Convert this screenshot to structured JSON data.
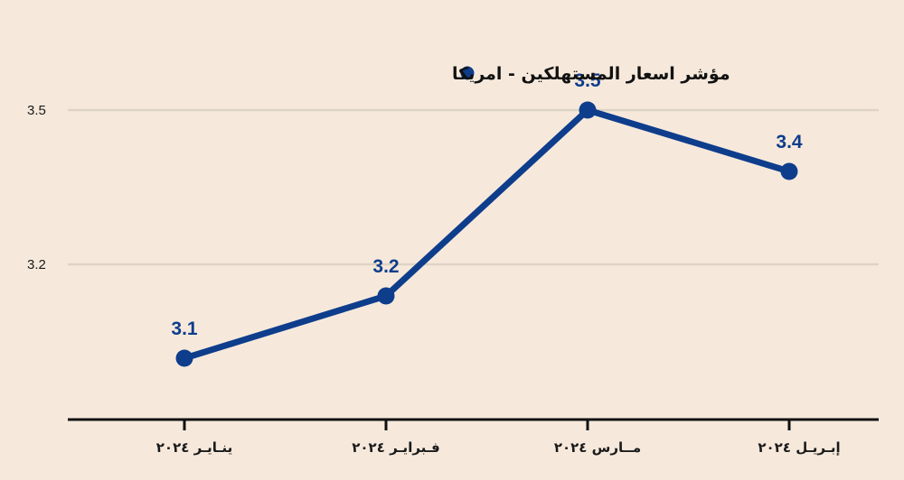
{
  "chart_data": {
    "type": "line",
    "title": "",
    "xlabel": "",
    "ylabel": "",
    "categories": [
      "ينـايـر ٢٠٢٤",
      "فـبرايـر ٢٠٢٤",
      "مــارس ٢٠٢٤",
      "إبـريـل ٢٠٢٤"
    ],
    "series": [
      {
        "name": "مؤشر اسعار المستهلكين - امريكا",
        "values": [
          3.1,
          3.2,
          3.5,
          3.4
        ],
        "data_labels": [
          "3.1",
          "3.2",
          "3.5",
          "3.4"
        ],
        "color": "#0e3d8c"
      }
    ],
    "yticks": [
      {
        "value": 3.2,
        "label": "3.2"
      },
      {
        "value": 3.5,
        "label": "3.5"
      }
    ],
    "ylim": [
      2.98,
      3.5
    ],
    "grid": true,
    "legend_position": "top"
  },
  "colors": {
    "background": "#f6e9dc",
    "grid": "#dfd3c3",
    "axis": "#111111",
    "series": "#0e3d8c"
  }
}
